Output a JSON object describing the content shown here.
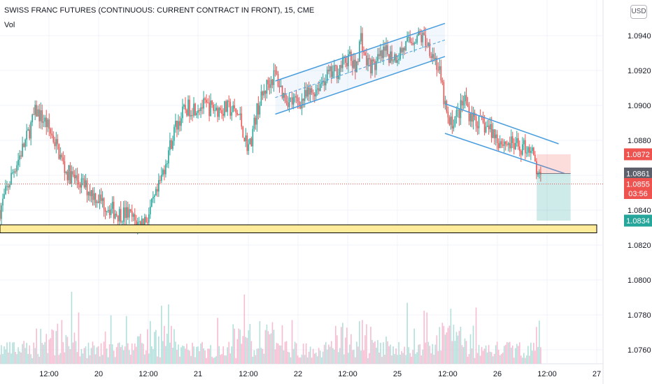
{
  "header": {
    "title": "SWISS FRANC FUTURES (CONTINUOUS: CURRENT CONTRACT IN FRONT), 15, CME",
    "volume_label": "Vol",
    "currency": "USD"
  },
  "chart_data": {
    "type": "candlestick",
    "title": "SWISS FRANC FUTURES (CONTINUOUS: CURRENT CONTRACT IN FRONT), 15, CME",
    "ylim": [
      1.0752,
      1.0956
    ],
    "y_ticks": [
      "1.0760",
      "1.0780",
      "1.0800",
      "1.0820",
      "1.0840",
      "1.0860",
      "1.0880",
      "1.0900",
      "1.0920",
      "1.0940"
    ],
    "x_ticks": [
      "12:00",
      "20",
      "12:00",
      "21",
      "12:00",
      "22",
      "12:00",
      "25",
      "12:00",
      "26",
      "12:00",
      "27"
    ],
    "grid": true,
    "price_path": [
      [
        0.0,
        1.084
      ],
      [
        0.13,
        1.0862
      ],
      [
        0.26,
        1.088
      ],
      [
        0.36,
        1.0897
      ],
      [
        0.46,
        1.089
      ],
      [
        0.56,
        1.0878
      ],
      [
        0.66,
        1.0862
      ],
      [
        0.8,
        1.0856
      ],
      [
        0.96,
        1.0848
      ],
      [
        1.08,
        1.0842
      ],
      [
        1.18,
        1.0838
      ],
      [
        1.28,
        1.0838
      ],
      [
        1.38,
        1.0832
      ],
      [
        1.48,
        1.0836
      ],
      [
        1.58,
        1.085
      ],
      [
        1.66,
        1.0868
      ],
      [
        1.76,
        1.0888
      ],
      [
        1.86,
        1.0898
      ],
      [
        2.0,
        1.09
      ],
      [
        2.16,
        1.0898
      ],
      [
        2.3,
        1.0898
      ],
      [
        2.4,
        1.0894
      ],
      [
        2.46,
        1.088
      ],
      [
        2.5,
        1.0876
      ],
      [
        2.58,
        1.0898
      ],
      [
        2.68,
        1.0912
      ],
      [
        2.76,
        1.0918
      ],
      [
        2.84,
        1.0906
      ],
      [
        2.92,
        1.0902
      ],
      [
        3.0,
        1.0902
      ],
      [
        3.14,
        1.0908
      ],
      [
        3.26,
        1.0916
      ],
      [
        3.38,
        1.092
      ],
      [
        3.5,
        1.0928
      ],
      [
        3.56,
        1.092
      ],
      [
        3.62,
        1.094
      ],
      [
        3.66,
        1.0926
      ],
      [
        3.74,
        1.0922
      ],
      [
        3.86,
        1.093
      ],
      [
        3.96,
        1.0928
      ],
      [
        4.0,
        1.093
      ],
      [
        4.1,
        1.0936
      ],
      [
        4.18,
        1.094
      ],
      [
        4.26,
        1.0938
      ],
      [
        4.34,
        1.093
      ],
      [
        4.4,
        1.092
      ],
      [
        4.46,
        1.09
      ],
      [
        4.5,
        1.0888
      ],
      [
        4.6,
        1.0896
      ],
      [
        4.66,
        1.0904
      ],
      [
        4.7,
        1.0896
      ],
      [
        4.8,
        1.089
      ],
      [
        4.92,
        1.0886
      ],
      [
        5.0,
        1.088
      ],
      [
        5.1,
        1.0878
      ],
      [
        5.2,
        1.0876
      ],
      [
        5.32,
        1.0876
      ],
      [
        5.38,
        1.0862
      ],
      [
        5.42,
        1.0856
      ]
    ],
    "drawings": {
      "support_zone": [
        1.0827,
        1.083
      ],
      "upper_channel": {
        "lines": [
          [
            [
              2.76,
              1.0914
            ],
            [
              4.46,
              1.0947
            ]
          ],
          [
            [
              2.76,
              1.0895
            ],
            [
              4.46,
              1.0928
            ]
          ]
        ],
        "midline": [
          [
            2.76,
            1.09045
          ],
          [
            4.46,
            1.09375
          ]
        ]
      },
      "lower_channel": {
        "lines": [
          [
            [
              4.46,
              1.0901
            ],
            [
              5.6,
              1.0878
            ]
          ],
          [
            [
              4.46,
              1.0884
            ],
            [
              5.66,
              1.0861
            ]
          ]
        ]
      },
      "position": {
        "x_range": [
          5.38,
          5.72
        ],
        "entry": 1.0861,
        "stop": 1.0872,
        "target": 1.0834
      }
    },
    "price_labels": [
      {
        "value": "1.0872",
        "color": "#ef5350"
      },
      {
        "value": "1.0861",
        "color": "#5d606b"
      },
      {
        "value": "1.0855",
        "color": "#ef5350"
      },
      {
        "value": "1.0834",
        "color": "#26a69a"
      }
    ],
    "countdown": "03:56",
    "colors": {
      "up": "#26a69a",
      "down": "#ef5350",
      "vol_up": "#b2dfdb",
      "vol_down": "#f8bbd0",
      "channel": "#4a9ede",
      "zone": "#ffeb99"
    }
  }
}
